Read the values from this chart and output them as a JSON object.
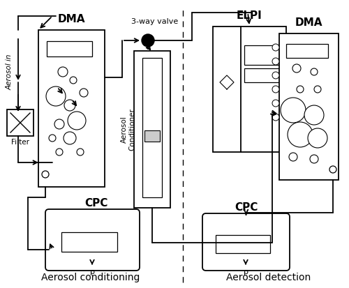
{
  "bg_color": "#ffffff",
  "fig_width": 5.0,
  "fig_height": 4.13,
  "dpi": 100,
  "label_conditioning": "Aerosol conditioning",
  "label_detection": "Aerosol detection",
  "label_aerosol_in": "Aerosol in",
  "label_3way": "3-way valve",
  "label_dma_left": "DMA",
  "label_dma_right": "DMA",
  "label_filter": "Filter",
  "label_cpc_left": "CPC",
  "label_cpc_right": "CPC",
  "label_elpi": "ELPI",
  "label_conditioner": "Aerosol\nConditioner"
}
